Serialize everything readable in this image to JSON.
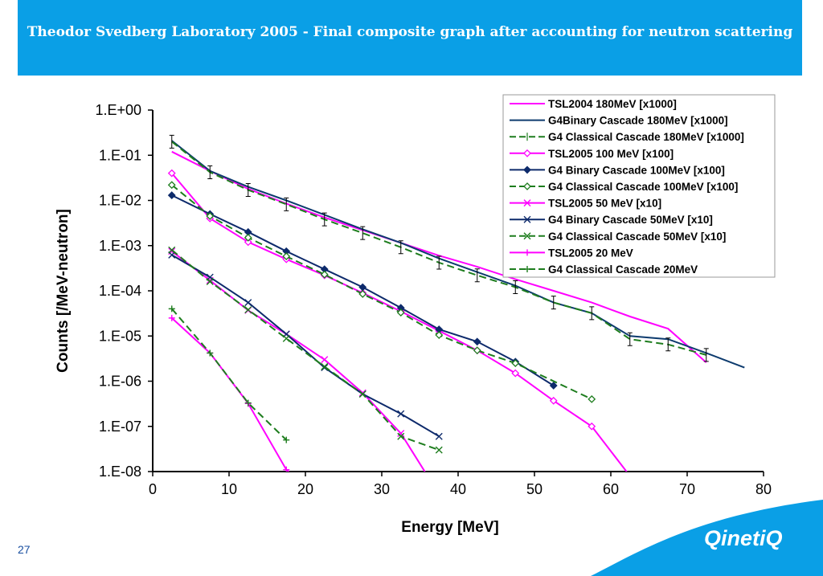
{
  "header": {
    "title": "Theodor Svedberg Laboratory 2005 - Final composite graph after accounting for neutron scattering"
  },
  "footer": {
    "slide_number": "27",
    "logo_text": "QinetiQ"
  },
  "colors": {
    "header_blue": "#0a9fe6",
    "magenta": "#ff00ff",
    "navy": "#0d2a6b",
    "green": "#1e7d1e"
  },
  "chart_data": {
    "type": "line",
    "xlabel": "Energy [MeV]",
    "ylabel": "Counts [/MeV-neutron]",
    "y_scale": "log",
    "xlim": [
      0,
      80
    ],
    "ylim": [
      1e-08,
      1
    ],
    "x_ticks": [
      0,
      10,
      20,
      30,
      40,
      50,
      60,
      70,
      80
    ],
    "x_tick_labels": [
      "0",
      "10",
      "20",
      "30",
      "40",
      "50",
      "60",
      "70",
      "80"
    ],
    "y_ticks": [
      1,
      0.1,
      0.01,
      0.001,
      0.0001,
      1e-05,
      1e-06,
      1e-07,
      1e-08
    ],
    "y_tick_labels": [
      "1.E+00",
      "1.E-01",
      "1.E-02",
      "1.E-03",
      "1.E-04",
      "1.E-05",
      "1.E-06",
      "1.E-07",
      "1.E-08"
    ],
    "legend_position": "top-right",
    "series": [
      {
        "name": "TSL2004 180MeV [x1000]",
        "color": "#ff00ff",
        "dash": "solid",
        "marker": "none",
        "x": [
          2.5,
          7.5,
          12.5,
          17.5,
          22.5,
          27.5,
          32.5,
          37.5,
          42.5,
          47.5,
          52.5,
          57.5,
          62.5,
          67.5,
          72.5
        ],
        "y": [
          0.12,
          0.045,
          0.018,
          0.0085,
          0.0042,
          0.0022,
          0.00115,
          0.0006,
          0.00034,
          0.00018,
          0.0001,
          5.5e-05,
          2.7e-05,
          1.45e-05,
          2.6e-06
        ]
      },
      {
        "name": "G4Binary Cascade 180MeV [x1000]",
        "color": "#0d3b6e",
        "dash": "solid",
        "marker": "none",
        "x": [
          2.5,
          7.5,
          12.5,
          17.5,
          22.5,
          27.5,
          32.5,
          37.5,
          42.5,
          47.5,
          52.5,
          57.5,
          62.5,
          67.5,
          72.5,
          77.5
        ],
        "y": [
          0.21,
          0.045,
          0.02,
          0.01,
          0.0048,
          0.0023,
          0.00115,
          0.00052,
          0.00026,
          0.00013,
          5.5e-05,
          3.2e-05,
          1e-05,
          8.5e-06,
          4.2e-06,
          2e-06
        ]
      },
      {
        "name": "G4 Classical Cascade 180MeV [x1000]",
        "color": "#1e7d1e",
        "dash": "dash",
        "marker": "errorbar",
        "x": [
          2.5,
          7.5,
          12.5,
          17.5,
          22.5,
          27.5,
          32.5,
          37.5,
          42.5,
          47.5,
          52.5,
          57.5,
          62.5,
          67.5,
          72.5
        ],
        "y": [
          0.2,
          0.042,
          0.017,
          0.0082,
          0.0038,
          0.0019,
          0.00092,
          0.00042,
          0.00022,
          0.00012,
          5.5e-05,
          3.2e-05,
          8.5e-06,
          6.5e-06,
          3.8e-06
        ]
      },
      {
        "name": "TSL2005 100 MeV [x100]",
        "color": "#ff00ff",
        "dash": "solid",
        "marker": "diamond-open",
        "x": [
          2.5,
          7.5,
          12.5,
          17.5,
          22.5,
          27.5,
          32.5,
          37.5,
          42.5,
          47.5,
          52.5,
          57.5,
          62.5
        ],
        "y": [
          0.04,
          0.004,
          0.0012,
          0.0005,
          0.00022,
          9e-05,
          3.5e-05,
          1.3e-05,
          4.8e-06,
          1.5e-06,
          3.7e-07,
          1e-07,
          8e-09
        ]
      },
      {
        "name": "G4 Binary Cascade 100MeV [x100]",
        "color": "#0d2a6b",
        "dash": "solid",
        "marker": "diamond-filled",
        "x": [
          2.5,
          7.5,
          12.5,
          17.5,
          22.5,
          27.5,
          32.5,
          37.5,
          42.5,
          47.5,
          52.5
        ],
        "y": [
          0.013,
          0.005,
          0.002,
          0.00075,
          0.0003,
          0.00012,
          4.2e-05,
          1.4e-05,
          7.5e-06,
          2.7e-06,
          8e-07
        ]
      },
      {
        "name": "G4 Classical Cascade 100MeV [x100]",
        "color": "#1e7d1e",
        "dash": "dash",
        "marker": "diamond-open",
        "x": [
          2.5,
          7.5,
          12.5,
          17.5,
          22.5,
          27.5,
          32.5,
          37.5,
          42.5,
          47.5,
          57.5
        ],
        "y": [
          0.022,
          0.0045,
          0.0015,
          0.00058,
          0.00023,
          8.5e-05,
          3.3e-05,
          1.05e-05,
          4.8e-06,
          2.5e-06,
          4e-07
        ]
      },
      {
        "name": "TSL2005 50 MeV [x10]",
        "color": "#ff00ff",
        "dash": "solid",
        "marker": "x",
        "x": [
          2.5,
          7.5,
          12.5,
          17.5,
          22.5,
          27.5,
          32.5,
          36
        ],
        "y": [
          0.00075,
          0.00017,
          3.7e-05,
          1.1e-05,
          3e-06,
          5.5e-07,
          7e-08,
          8e-09
        ]
      },
      {
        "name": "G4 Binary Cascade 50MeV [x10]",
        "color": "#0d2a6b",
        "dash": "solid",
        "marker": "x",
        "x": [
          2.5,
          7.5,
          12.5,
          17.5,
          22.5,
          27.5,
          32.5,
          37.5
        ],
        "y": [
          0.00062,
          0.0002,
          5.5e-05,
          1.1e-05,
          2e-06,
          5.2e-07,
          1.9e-07,
          6e-08
        ]
      },
      {
        "name": "G4 Classical Cascade 50MeV [x10]",
        "color": "#1e7d1e",
        "dash": "dash",
        "marker": "x",
        "x": [
          2.5,
          7.5,
          12.5,
          17.5,
          22.5,
          27.5,
          32.5,
          37.5
        ],
        "y": [
          0.0008,
          0.00016,
          3.8e-05,
          8.8e-06,
          2.1e-06,
          5.2e-07,
          6e-08,
          3e-08
        ]
      },
      {
        "name": "TSL2005 20 MeV",
        "color": "#ff00ff",
        "dash": "solid",
        "marker": "plus",
        "x": [
          2.5,
          7.5,
          12.5,
          17.5,
          18.5
        ],
        "y": [
          2.5e-05,
          4.2e-06,
          3.2e-07,
          1.1e-08,
          8e-09
        ]
      },
      {
        "name": "G4 Classical Cascade 20MeV",
        "color": "#1e7d1e",
        "dash": "dash",
        "marker": "plus",
        "x": [
          2.5,
          7.5,
          12.5,
          17.5
        ],
        "y": [
          4e-05,
          4.2e-06,
          3.3e-07,
          5e-08
        ]
      }
    ]
  }
}
